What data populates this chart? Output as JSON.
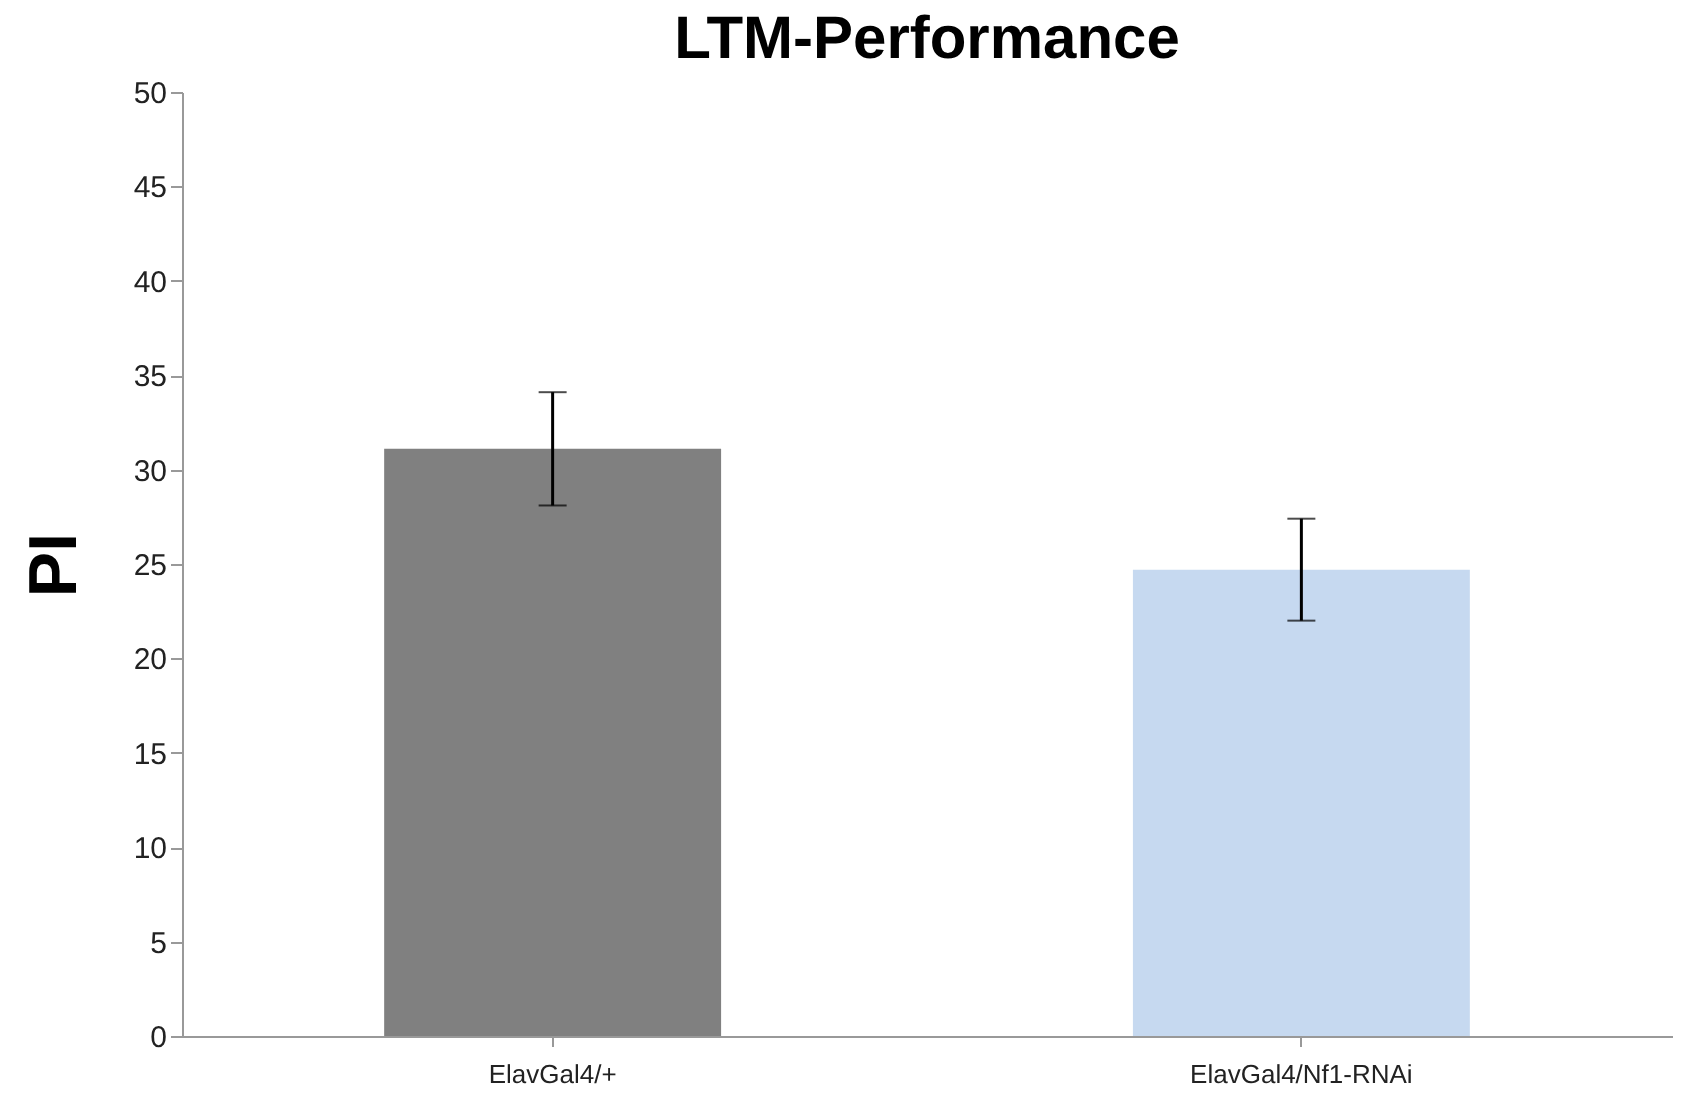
{
  "chart_data": {
    "type": "bar",
    "title": "LTM-Performance",
    "ylabel": "PI",
    "categories": [
      "ElavGal4/+",
      "ElavGal4/Nf1-RNAi"
    ],
    "values": [
      31.1,
      24.7
    ],
    "colors": [
      "#808080",
      "#c6d9f0"
    ],
    "errors": [
      3,
      2.7
    ],
    "ylim": [
      0,
      50
    ],
    "yticks": [
      0,
      5,
      10,
      15,
      20,
      25,
      30,
      35,
      40,
      45,
      50
    ],
    "grid": false
  }
}
